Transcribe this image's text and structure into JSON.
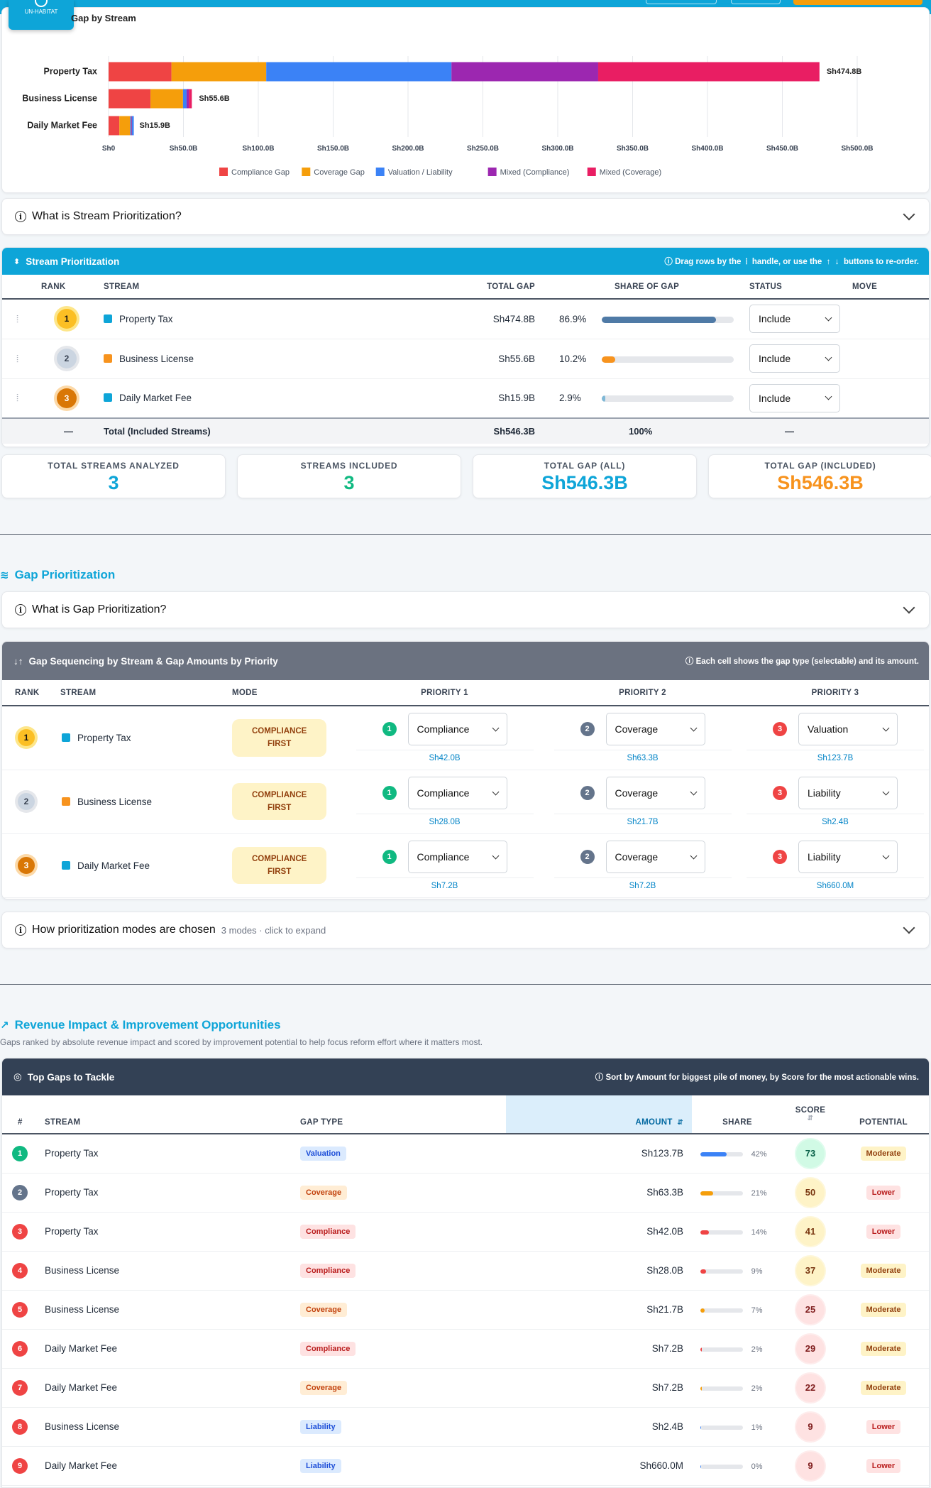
{
  "logo": {
    "text": "UN-HABITAT"
  },
  "gap_chart": {
    "title": "Gap by Stream",
    "chart_data": {
      "type": "bar",
      "orientation": "horizontal",
      "stacked": true,
      "categories": [
        "Property Tax",
        "Business License",
        "Daily Market Fee"
      ],
      "series": [
        {
          "name": "Compliance Gap",
          "color": "#ef4444",
          "values": [
            42.0,
            28.0,
            7.2
          ]
        },
        {
          "name": "Coverage Gap",
          "color": "#f59e0b",
          "values": [
            63.3,
            21.7,
            7.2
          ]
        },
        {
          "name": "Valuation / Liability",
          "color": "#3b82f6",
          "values": [
            123.7,
            2.4,
            0.66
          ]
        },
        {
          "name": "Mixed (Compliance)",
          "color": "#9c27b0",
          "values": [
            98.0,
            1.5,
            0
          ]
        },
        {
          "name": "Mixed (Coverage)",
          "color": "#e91e63",
          "values": [
            147.8,
            2.0,
            0.84
          ]
        }
      ],
      "totals_labels": [
        "Sh474.8B",
        "Sh55.6B",
        "Sh15.9B"
      ],
      "xlim": [
        0,
        500
      ],
      "xticks": [
        "Sh0",
        "Sh50.0B",
        "Sh100.0B",
        "Sh150.0B",
        "Sh200.0B",
        "Sh250.0B",
        "Sh300.0B",
        "Sh350.0B",
        "Sh400.0B",
        "Sh450.0B",
        "Sh500.0B"
      ],
      "legend": "bottom",
      "grid": true
    }
  },
  "stream_accordion": {
    "title": "What is Stream Prioritization?"
  },
  "stream_panel": {
    "title": "Stream Prioritization",
    "hint_pre": "Drag rows by the",
    "hint_mid": "handle, or use the",
    "hint_post": "buttons to re-order.",
    "headers": {
      "rank": "RANK",
      "stream": "STREAM",
      "total": "TOTAL GAP",
      "share": "SHARE OF GAP",
      "status": "STATUS",
      "move": "MOVE"
    },
    "rows": [
      {
        "rank": "1",
        "name": "Property Tax",
        "color": "#0ea5d8",
        "total": "Sh474.8B",
        "pct": "86.9%",
        "share": 0.869,
        "bar": "#4f7aa6",
        "status": "Include"
      },
      {
        "rank": "2",
        "name": "Business License",
        "color": "#f7931e",
        "total": "Sh55.6B",
        "pct": "10.2%",
        "share": 0.102,
        "bar": "#f7931e",
        "status": "Include"
      },
      {
        "rank": "3",
        "name": "Daily Market Fee",
        "color": "#0ea5d8",
        "total": "Sh15.9B",
        "pct": "2.9%",
        "share": 0.029,
        "bar": "#7fb8d6",
        "status": "Include"
      }
    ],
    "total_row": {
      "dash": "—",
      "label": "Total (Included Streams)",
      "total": "Sh546.3B",
      "share": "100%",
      "status": "—"
    }
  },
  "stats": [
    {
      "label": "TOTAL STREAMS ANALYZED",
      "value": "3",
      "color": "#0ea5d8"
    },
    {
      "label": "STREAMS INCLUDED",
      "value": "3",
      "color": "#10b981"
    },
    {
      "label": "TOTAL GAP (ALL)",
      "value": "Sh546.3B",
      "color": "#0ea5d8"
    },
    {
      "label": "TOTAL GAP (INCLUDED)",
      "value": "Sh546.3B",
      "color": "#f7931e"
    }
  ],
  "gap_section": {
    "title": "Gap Prioritization"
  },
  "gap_accordion": {
    "title": "What is Gap Prioritization?"
  },
  "gap_panel": {
    "title": "Gap Sequencing by Stream & Gap Amounts by Priority",
    "hint": "Each cell shows the gap type (selectable) and its amount.",
    "headers": {
      "rank": "RANK",
      "stream": "STREAM",
      "mode": "MODE",
      "p1": "PRIORITY 1",
      "p2": "PRIORITY 2",
      "p3": "PRIORITY 3"
    },
    "rows": [
      {
        "rank": "1",
        "name": "Property Tax",
        "color": "#0ea5d8",
        "mode1": "COMPLIANCE",
        "mode2": "FIRST",
        "p": [
          {
            "n": "1",
            "type": "Compliance",
            "amt": "Sh42.0B"
          },
          {
            "n": "2",
            "type": "Coverage",
            "amt": "Sh63.3B"
          },
          {
            "n": "3",
            "type": "Valuation",
            "amt": "Sh123.7B"
          }
        ]
      },
      {
        "rank": "2",
        "name": "Business License",
        "color": "#f7931e",
        "mode1": "COMPLIANCE",
        "mode2": "FIRST",
        "p": [
          {
            "n": "1",
            "type": "Compliance",
            "amt": "Sh28.0B"
          },
          {
            "n": "2",
            "type": "Coverage",
            "amt": "Sh21.7B"
          },
          {
            "n": "3",
            "type": "Liability",
            "amt": "Sh2.4B"
          }
        ]
      },
      {
        "rank": "3",
        "name": "Daily Market Fee",
        "color": "#0ea5d8",
        "mode1": "COMPLIANCE",
        "mode2": "FIRST",
        "p": [
          {
            "n": "1",
            "type": "Compliance",
            "amt": "Sh7.2B"
          },
          {
            "n": "2",
            "type": "Coverage",
            "amt": "Sh7.2B"
          },
          {
            "n": "3",
            "type": "Liability",
            "amt": "Sh660.0M"
          }
        ]
      }
    ]
  },
  "modes_accordion": {
    "title": "How prioritization modes are chosen",
    "sub": "3 modes · click to expand"
  },
  "revenue_section": {
    "title": "Revenue Impact & Improvement Opportunities",
    "subtitle": "Gaps ranked by absolute revenue impact and scored by improvement potential to help focus reform effort where it matters most."
  },
  "top_gaps": {
    "title": "Top Gaps to Tackle",
    "hint": "Sort by Amount for biggest pile of money, by Score for the most actionable wins.",
    "headers": {
      "num": "#",
      "stream": "STREAM",
      "type": "GAP TYPE",
      "amount": "AMOUNT",
      "share": "SHARE",
      "score": "SCORE",
      "potential": "POTENTIAL"
    },
    "rows": [
      {
        "n": "1",
        "ncolor": "#10b981",
        "stream": "Property Tax",
        "type": "Valuation",
        "tclass": "b-val",
        "amount": "Sh123.7B",
        "share": 0.42,
        "pct": "42%",
        "bar": "#3b82f6",
        "score": "73",
        "sbg": "#d1fae5",
        "sfg": "#065f46",
        "pot": "Moderate",
        "pclass": "p-mod"
      },
      {
        "n": "2",
        "ncolor": "#64748b",
        "stream": "Property Tax",
        "type": "Coverage",
        "tclass": "b-cov",
        "amount": "Sh63.3B",
        "share": 0.21,
        "pct": "21%",
        "bar": "#f59e0b",
        "score": "50",
        "sbg": "#fef3c7",
        "sfg": "#78350f",
        "pot": "Lower",
        "pclass": "p-low"
      },
      {
        "n": "3",
        "ncolor": "#ef4444",
        "stream": "Property Tax",
        "type": "Compliance",
        "tclass": "b-com",
        "amount": "Sh42.0B",
        "share": 0.14,
        "pct": "14%",
        "bar": "#ef4444",
        "score": "41",
        "sbg": "#fef3c7",
        "sfg": "#78350f",
        "pot": "Lower",
        "pclass": "p-low"
      },
      {
        "n": "4",
        "ncolor": "#ef4444",
        "stream": "Business License",
        "type": "Compliance",
        "tclass": "b-com",
        "amount": "Sh28.0B",
        "share": 0.09,
        "pct": "9%",
        "bar": "#ef4444",
        "score": "37",
        "sbg": "#fef3c7",
        "sfg": "#78350f",
        "pot": "Moderate",
        "pclass": "p-mod"
      },
      {
        "n": "5",
        "ncolor": "#ef4444",
        "stream": "Business License",
        "type": "Coverage",
        "tclass": "b-cov",
        "amount": "Sh21.7B",
        "share": 0.07,
        "pct": "7%",
        "bar": "#f59e0b",
        "score": "25",
        "sbg": "#fee2e2",
        "sfg": "#7f1d1d",
        "pot": "Moderate",
        "pclass": "p-mod"
      },
      {
        "n": "6",
        "ncolor": "#ef4444",
        "stream": "Daily Market Fee",
        "type": "Compliance",
        "tclass": "b-com",
        "amount": "Sh7.2B",
        "share": 0.02,
        "pct": "2%",
        "bar": "#ef4444",
        "score": "29",
        "sbg": "#fee2e2",
        "sfg": "#7f1d1d",
        "pot": "Moderate",
        "pclass": "p-mod"
      },
      {
        "n": "7",
        "ncolor": "#ef4444",
        "stream": "Daily Market Fee",
        "type": "Coverage",
        "tclass": "b-cov",
        "amount": "Sh7.2B",
        "share": 0.02,
        "pct": "2%",
        "bar": "#f59e0b",
        "score": "22",
        "sbg": "#fee2e2",
        "sfg": "#7f1d1d",
        "pot": "Moderate",
        "pclass": "p-mod"
      },
      {
        "n": "8",
        "ncolor": "#ef4444",
        "stream": "Business License",
        "type": "Liability",
        "tclass": "b-lia",
        "amount": "Sh2.4B",
        "share": 0.01,
        "pct": "1%",
        "bar": "#3b82f6",
        "score": "9",
        "sbg": "#fee2e2",
        "sfg": "#7f1d1d",
        "pot": "Lower",
        "pclass": "p-low"
      },
      {
        "n": "9",
        "ncolor": "#ef4444",
        "stream": "Daily Market Fee",
        "type": "Liability",
        "tclass": "b-lia",
        "amount": "Sh660.0M",
        "share": 0.0,
        "pct": "0%",
        "bar": "#3b82f6",
        "score": "9",
        "sbg": "#fee2e2",
        "sfg": "#7f1d1d",
        "pot": "Lower",
        "pclass": "p-low"
      }
    ]
  }
}
